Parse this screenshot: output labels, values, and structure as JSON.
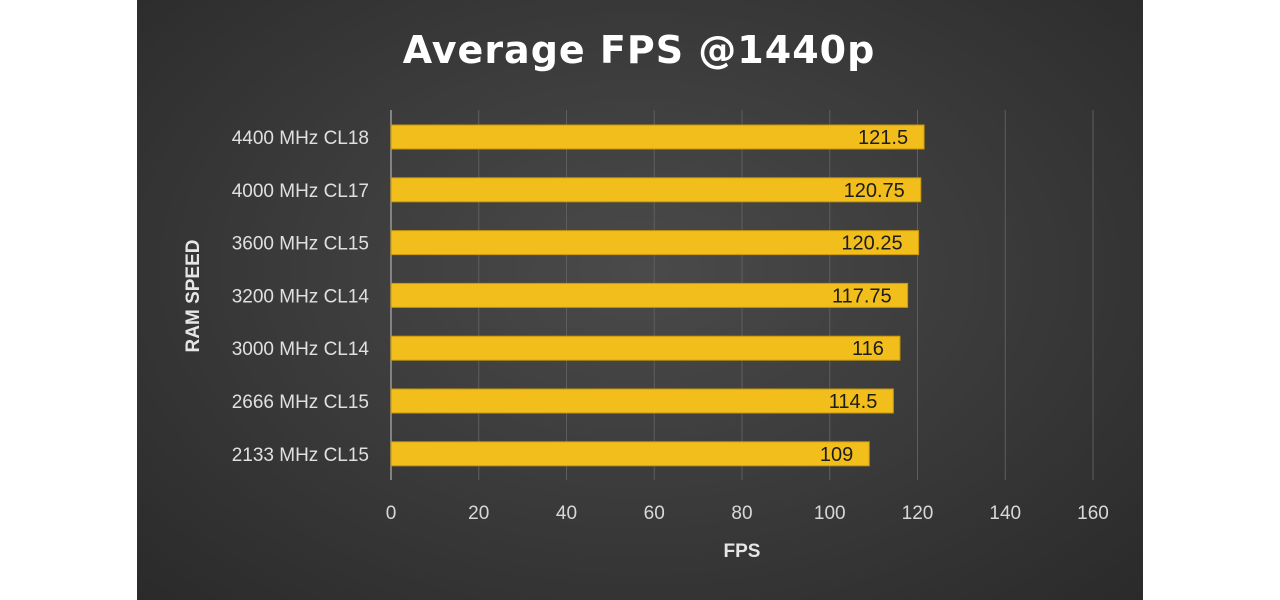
{
  "colors": {
    "bar": "#f2be1c",
    "bar_edge": "#c9960a",
    "grid": "#5e5e5e",
    "axis": "#9a9a9a"
  },
  "chart_data": {
    "type": "bar",
    "orientation": "horizontal",
    "title": "Average FPS @1440p",
    "xlabel": "FPS",
    "ylabel": "RAM SPEED",
    "categories": [
      "4400 MHz CL18",
      "4000 MHz CL17",
      "3600 MHz CL15",
      "3200 MHz CL14",
      "3000 MHz CL14",
      "2666 MHz CL15",
      "2133 MHz CL15"
    ],
    "values": [
      121.5,
      120.75,
      120.25,
      117.75,
      116,
      114.5,
      109
    ],
    "value_labels": [
      "121.5",
      "120.75",
      "120.25",
      "117.75",
      "116",
      "114.5",
      "109"
    ],
    "xlim": [
      0,
      160
    ],
    "xticks": [
      0,
      20,
      40,
      60,
      80,
      100,
      120,
      140,
      160
    ],
    "xtick_labels": [
      "0",
      "20",
      "40",
      "60",
      "80",
      "100",
      "120",
      "140",
      "160"
    ],
    "grid": true,
    "legend": "none"
  }
}
